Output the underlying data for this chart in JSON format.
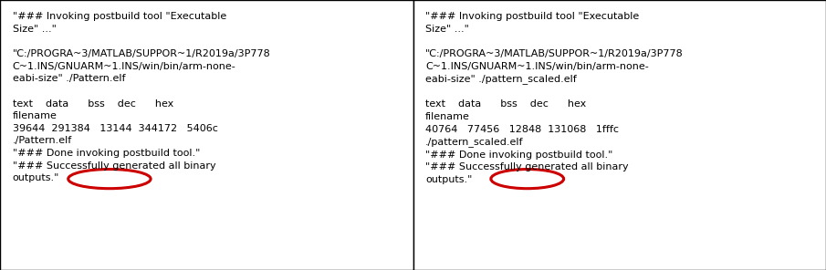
{
  "left_lines": [
    "\"### Invoking postbuild tool \"Executable",
    "Size\" ...\"",
    "",
    "\"C:/PROGRA~3/MATLAB/SUPPOR~1/R2019a/3P778",
    "C~1.INS/GNUARM~1.INS/win/bin/arm-none-",
    "eabi-size\" ./Pattern.elf",
    "",
    "text    data      bss    dec      hex",
    "filename",
    "39644  291384   13144  344172   5406c",
    "./Pattern.elf",
    "\"### Done invoking postbuild tool.\"",
    "\"### Successfully generated all binary",
    "outputs.\""
  ],
  "right_lines": [
    "\"### Invoking postbuild tool \"Executable",
    "Size\" ...\"",
    "",
    "\"C:/PROGRA~3/MATLAB/SUPPOR~1/R2019a/3P778",
    "C~1.INS/GNUARM~1.INS/win/bin/arm-none-",
    "eabi-size\" ./pattern_scaled.elf",
    "",
    "text    data      bss    dec      hex",
    "filename",
    "40764   77456   12848  131068   1fffc",
    "./pattern_scaled.elf",
    "\"### Done invoking postbuild tool.\"",
    "\"### Successfully generated all binary",
    "outputs.\""
  ],
  "bg_color": "#ffffff",
  "border_color": "#000000",
  "circle_color": "#cc0000",
  "text_color": "#000000",
  "font_size": 8.0,
  "font_family": "Courier New"
}
